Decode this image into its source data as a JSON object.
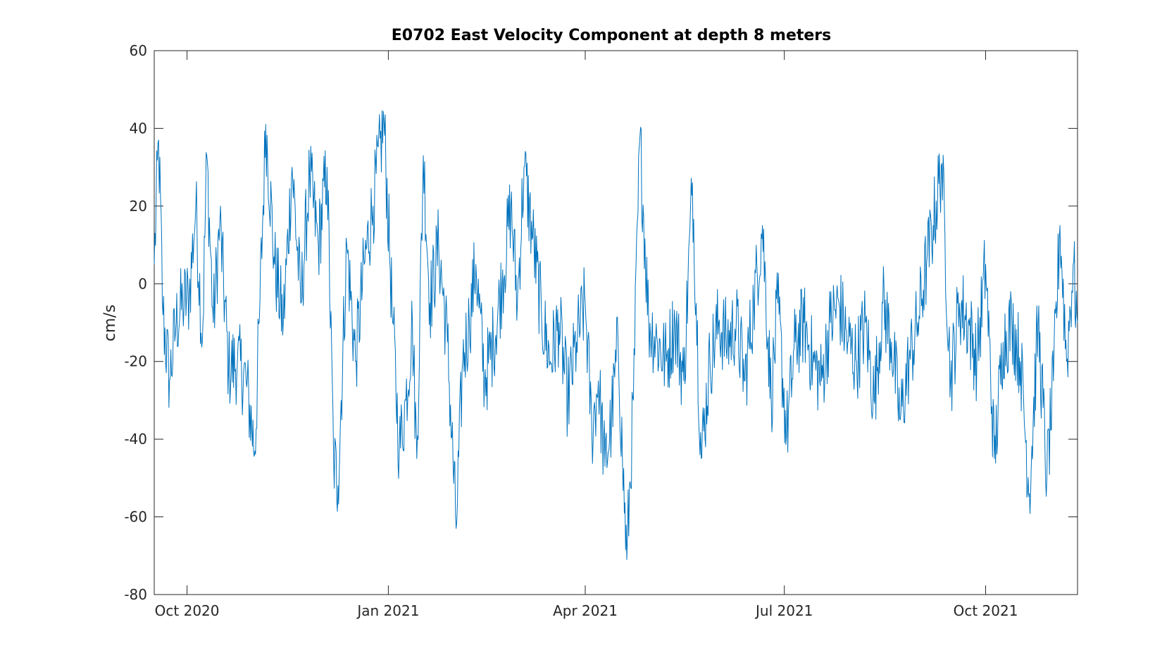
{
  "chart_data": {
    "type": "line",
    "title": "E0702 East Velocity Component at depth 8 meters",
    "xlabel": "",
    "ylabel": "cm/s",
    "xlim": [
      "2020-09-16",
      "2021-11-12"
    ],
    "ylim": [
      -80,
      60
    ],
    "yticks": [
      -80,
      -60,
      -40,
      -20,
      0,
      20,
      40,
      60
    ],
    "xticks": [
      {
        "date": "2020-10-01",
        "label": "Oct 2020"
      },
      {
        "date": "2021-01-01",
        "label": "Jan 2021"
      },
      {
        "date": "2021-04-01",
        "label": "Apr 2021"
      },
      {
        "date": "2021-07-01",
        "label": "Jul 2021"
      },
      {
        "date": "2021-10-01",
        "label": "Oct 2021"
      }
    ],
    "grid": false,
    "series": [
      {
        "color": "#0072BD",
        "x": [
          "2020-09-16",
          "2020-09-18",
          "2020-09-20",
          "2020-09-23",
          "2020-09-26",
          "2020-09-29",
          "2020-10-02",
          "2020-10-05",
          "2020-10-08",
          "2020-10-10",
          "2020-10-13",
          "2020-10-16",
          "2020-10-20",
          "2020-10-24",
          "2020-10-28",
          "2020-11-01",
          "2020-11-03",
          "2020-11-06",
          "2020-11-10",
          "2020-11-14",
          "2020-11-18",
          "2020-11-22",
          "2020-11-26",
          "2020-11-30",
          "2020-12-04",
          "2020-12-07",
          "2020-12-09",
          "2020-12-13",
          "2020-12-17",
          "2020-12-21",
          "2020-12-25",
          "2020-12-30",
          "2021-01-03",
          "2021-01-06",
          "2021-01-09",
          "2021-01-12",
          "2021-01-14",
          "2021-01-17",
          "2021-01-20",
          "2021-01-24",
          "2021-01-28",
          "2021-02-01",
          "2021-02-04",
          "2021-02-07",
          "2021-02-10",
          "2021-02-14",
          "2021-02-18",
          "2021-02-22",
          "2021-02-26",
          "2021-03-01",
          "2021-03-04",
          "2021-03-08",
          "2021-03-12",
          "2021-03-16",
          "2021-03-20",
          "2021-03-24",
          "2021-03-28",
          "2021-04-01",
          "2021-04-04",
          "2021-04-07",
          "2021-04-10",
          "2021-04-13",
          "2021-04-16",
          "2021-04-18",
          "2021-04-20",
          "2021-04-23",
          "2021-04-26",
          "2021-04-30",
          "2021-05-04",
          "2021-05-08",
          "2021-05-12",
          "2021-05-16",
          "2021-05-20",
          "2021-05-24",
          "2021-05-28",
          "2021-06-01",
          "2021-06-05",
          "2021-06-09",
          "2021-06-13",
          "2021-06-17",
          "2021-06-21",
          "2021-06-25",
          "2021-06-28",
          "2021-07-02",
          "2021-07-06",
          "2021-07-10",
          "2021-07-14",
          "2021-07-18",
          "2021-07-22",
          "2021-07-26",
          "2021-07-30",
          "2021-08-03",
          "2021-08-07",
          "2021-08-11",
          "2021-08-15",
          "2021-08-19",
          "2021-08-23",
          "2021-08-27",
          "2021-08-31",
          "2021-09-04",
          "2021-09-07",
          "2021-09-11",
          "2021-09-15",
          "2021-09-19",
          "2021-09-23",
          "2021-09-27",
          "2021-10-01",
          "2021-10-05",
          "2021-10-09",
          "2021-10-13",
          "2021-10-17",
          "2021-10-21",
          "2021-10-25",
          "2021-10-29",
          "2021-11-01",
          "2021-11-04",
          "2021-11-07",
          "2021-11-10",
          "2021-11-12"
        ],
        "y": [
          5,
          37,
          -8,
          -25,
          -10,
          -5,
          -3,
          20,
          -15,
          33,
          -10,
          16,
          -22,
          -20,
          -25,
          -43,
          -10,
          41,
          5,
          -10,
          30,
          -5,
          28,
          10,
          30,
          -45,
          -52,
          10,
          -20,
          5,
          20,
          42,
          -10,
          -43,
          -30,
          -10,
          -45,
          33,
          -5,
          10,
          -15,
          -63,
          -20,
          -10,
          5,
          -25,
          -15,
          0,
          20,
          -5,
          30,
          12,
          -8,
          -20,
          -10,
          -30,
          -15,
          -5,
          -38,
          -25,
          -47,
          -35,
          -15,
          -45,
          -71,
          -30,
          38,
          -10,
          -15,
          -20,
          -10,
          -25,
          26,
          -45,
          -20,
          -10,
          -15,
          -10,
          -25,
          -5,
          15,
          -30,
          -5,
          -39,
          -15,
          -10,
          -20,
          -25,
          -10,
          -5,
          -15,
          -20,
          -10,
          -30,
          -5,
          -15,
          -35,
          -20,
          -10,
          5,
          15,
          31,
          -25,
          -5,
          -10,
          -20,
          5,
          -45,
          -15,
          -10,
          -20,
          -54,
          -10,
          -50,
          -25,
          15,
          -20,
          5,
          -10
        ]
      }
    ]
  }
}
